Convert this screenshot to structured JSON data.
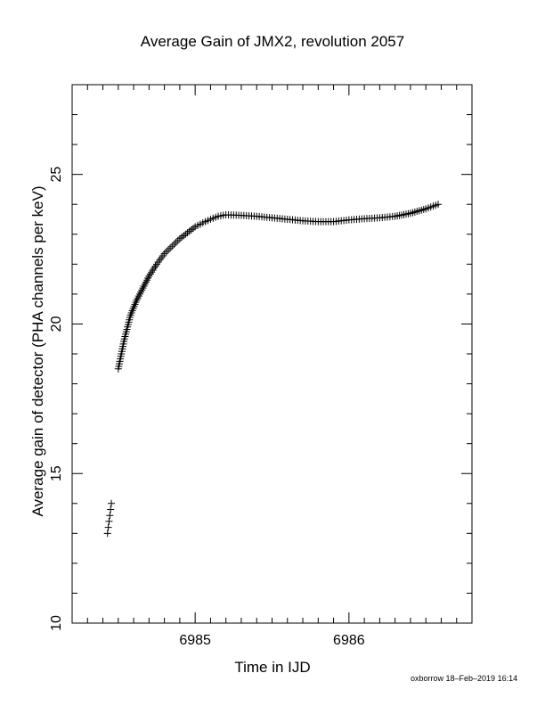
{
  "chart_data": {
    "type": "scatter",
    "title": "Average Gain of JMX2, revolution 2057",
    "xlabel": "Time in IJD",
    "ylabel": "Average gain of detector (PHA channels per keV)",
    "xlim": [
      6984.2,
      6986.8
    ],
    "ylim": [
      10,
      28
    ],
    "x_ticks": [
      6985,
      6986
    ],
    "x_tick_labels": [
      "6985",
      "6986"
    ],
    "y_ticks": [
      10,
      15,
      20,
      25
    ],
    "y_tick_labels": [
      "10",
      "15",
      "20",
      "25"
    ],
    "x_minor_step": 0.1,
    "y_minor_step": 1,
    "marker": "+",
    "grid": false,
    "series": [
      {
        "name": "",
        "points": [
          [
            6984.43,
            13.0
          ],
          [
            6984.435,
            13.2
          ],
          [
            6984.44,
            13.4
          ],
          [
            6984.445,
            13.6
          ],
          [
            6984.45,
            13.8
          ],
          [
            6984.455,
            14.0
          ],
          [
            6984.5,
            18.5
          ],
          [
            6984.52,
            19.0
          ],
          [
            6984.54,
            19.5
          ],
          [
            6984.56,
            19.9
          ],
          [
            6984.58,
            20.3
          ],
          [
            6984.62,
            20.8
          ],
          [
            6984.66,
            21.2
          ],
          [
            6984.7,
            21.6
          ],
          [
            6984.75,
            22.0
          ],
          [
            6984.8,
            22.35
          ],
          [
            6984.85,
            22.6
          ],
          [
            6984.9,
            22.85
          ],
          [
            6984.95,
            23.05
          ],
          [
            6985.0,
            23.25
          ],
          [
            6985.05,
            23.38
          ],
          [
            6985.1,
            23.5
          ],
          [
            6985.15,
            23.6
          ],
          [
            6985.2,
            23.65
          ],
          [
            6985.3,
            23.63
          ],
          [
            6985.4,
            23.6
          ],
          [
            6985.5,
            23.55
          ],
          [
            6985.6,
            23.5
          ],
          [
            6985.7,
            23.45
          ],
          [
            6985.8,
            23.42
          ],
          [
            6985.9,
            23.42
          ],
          [
            6986.0,
            23.48
          ],
          [
            6986.1,
            23.52
          ],
          [
            6986.2,
            23.55
          ],
          [
            6986.3,
            23.6
          ],
          [
            6986.4,
            23.7
          ],
          [
            6986.5,
            23.85
          ],
          [
            6986.58,
            24.0
          ]
        ]
      }
    ]
  },
  "footer": {
    "note": "oxborrow 18–Feb–2019 16:14"
  }
}
